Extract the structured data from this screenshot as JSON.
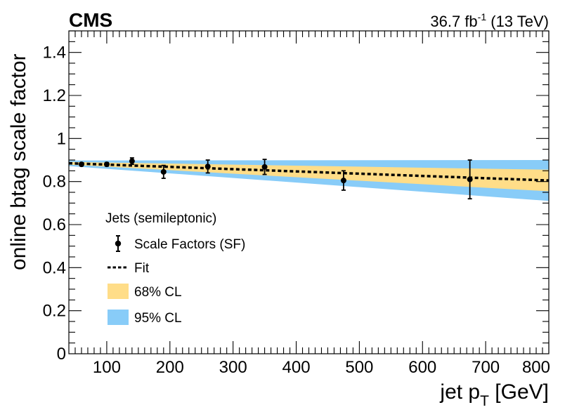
{
  "chart_data": {
    "type": "scatter",
    "title": "",
    "experiment_label": "CMS",
    "lumi_text": {
      "lumi": "36.7 fb",
      "lumi_exponent": "-1",
      "energy": "(13 TeV)"
    },
    "xlabel": {
      "main": "jet p",
      "subscript": "T",
      "unit": "[GeV]"
    },
    "ylabel": "online btag scale factor",
    "xlim": [
      40,
      800
    ],
    "ylim": [
      0,
      1.5
    ],
    "x_ticks": [
      100,
      200,
      300,
      400,
      500,
      600,
      700,
      800
    ],
    "x_tick_labels": [
      "100",
      "200",
      "300",
      "400",
      "500",
      "600",
      "700",
      "800"
    ],
    "y_ticks": [
      0,
      0.2,
      0.4,
      0.6,
      0.8,
      1.0,
      1.2,
      1.4
    ],
    "y_tick_labels": [
      "0",
      "0.2",
      "0.4",
      "0.6",
      "0.8",
      "1",
      "1.2",
      "1.4"
    ],
    "grid": false,
    "legend_header": "Jets (semileptonic)",
    "series": [
      {
        "name": "Scale Factors (SF)",
        "kind": "points",
        "color": "#000000",
        "x": [
          60,
          100,
          140,
          190,
          260,
          350,
          475,
          675
        ],
        "y": [
          0.88,
          0.88,
          0.895,
          0.845,
          0.87,
          0.868,
          0.805,
          0.81
        ],
        "yerr": [
          0.007,
          0.008,
          0.015,
          0.03,
          0.03,
          0.035,
          0.045,
          0.09
        ]
      },
      {
        "name": "Fit",
        "kind": "dashed-line",
        "color": "#000000",
        "x": [
          40,
          800
        ],
        "y": [
          0.885,
          0.805
        ]
      },
      {
        "name": "68% CL",
        "kind": "band",
        "color": "#ffdd88",
        "x": [
          40,
          800
        ],
        "y_low": [
          0.879,
          0.755
        ],
        "y_high": [
          0.891,
          0.855
        ]
      },
      {
        "name": "95% CL",
        "kind": "band",
        "color": "#88ccf8",
        "x": [
          40,
          800
        ],
        "y_low": [
          0.872,
          0.71
        ],
        "y_high": [
          0.898,
          0.9
        ]
      }
    ]
  }
}
